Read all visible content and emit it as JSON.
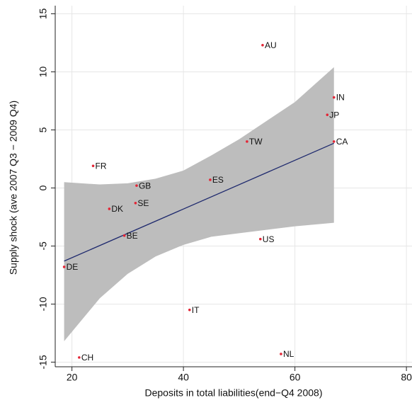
{
  "chart_data": {
    "type": "scatter",
    "xlabel": "Deposits in total liabilities(end−Q4 2008)",
    "ylabel": "Supply shock (ave 2007 Q3 − 2009 Q4)",
    "xlim": [
      17,
      81
    ],
    "ylim": [
      -15.4,
      15.7
    ],
    "xticks": [
      20,
      40,
      60,
      80
    ],
    "yticks": [
      -15,
      -10,
      -5,
      0,
      5,
      10,
      15
    ],
    "grid": true,
    "series": [
      {
        "color": "#e32636",
        "labels": [
          "AU",
          "IN",
          "JP",
          "CA",
          "TW",
          "FR",
          "GB",
          "ES",
          "SE",
          "DK",
          "BE",
          "US",
          "DE",
          "IT",
          "NL",
          "CH"
        ],
        "x": [
          54.2,
          67.0,
          65.8,
          67.0,
          51.4,
          23.8,
          31.6,
          44.8,
          31.4,
          26.7,
          29.4,
          53.8,
          18.6,
          41.1,
          57.5,
          21.3
        ],
        "values": [
          12.3,
          7.8,
          6.3,
          4.0,
          4.0,
          1.9,
          0.2,
          0.7,
          -1.3,
          -1.8,
          -4.1,
          -4.4,
          -6.8,
          -10.5,
          -14.3,
          -14.6
        ]
      }
    ],
    "fit": {
      "color": "#1f2a6e",
      "x": [
        18.6,
        67.0
      ],
      "values": [
        -6.3,
        3.85
      ]
    },
    "band": {
      "color": "#bdbdbd",
      "x": [
        18.6,
        25,
        30,
        35,
        40,
        45,
        50,
        55,
        60,
        67
      ],
      "upper": [
        0.5,
        0.3,
        0.4,
        0.8,
        1.5,
        2.8,
        4.2,
        5.8,
        7.4,
        10.4
      ],
      "lower": [
        -13.2,
        -9.5,
        -7.4,
        -5.9,
        -4.9,
        -4.2,
        -3.9,
        -3.6,
        -3.3,
        -3.0
      ]
    }
  }
}
